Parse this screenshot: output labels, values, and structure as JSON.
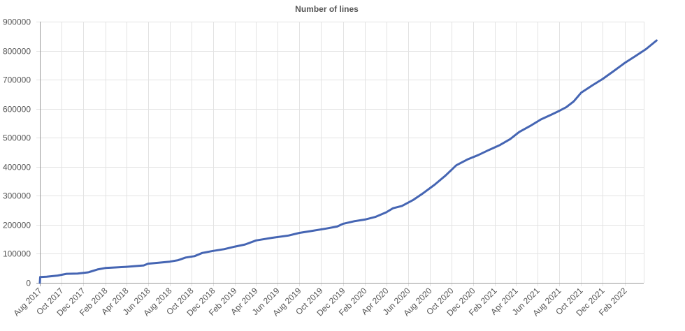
{
  "chart_data": {
    "type": "line",
    "title": "Number of lines",
    "xlabel": "",
    "ylabel": "",
    "ylim": [
      0,
      900000
    ],
    "grid": true,
    "legend": "none",
    "color": "#4565b3",
    "y_ticks": [
      "0",
      "100000",
      "200000",
      "300000",
      "400000",
      "500000",
      "600000",
      "700000",
      "800000",
      "900000"
    ],
    "x_ticks": [
      "Aug 2017",
      "Oct 2017",
      "Dec 2017",
      "Feb 2018",
      "Apr 2018",
      "Jun 2018",
      "Aug 2018",
      "Oct 2018",
      "Dec 2018",
      "Feb 2019",
      "Apr 2019",
      "Jun 2019",
      "Aug 2019",
      "Oct 2019",
      "Dec 2019",
      "Feb 2020",
      "Apr 2020",
      "Jun 2020",
      "Aug 2020",
      "Oct 2020",
      "Dec 2020",
      "Feb 2021",
      "Apr 2021",
      "Jun 2021",
      "Aug 2021",
      "Oct 2021",
      "Dec 2021",
      "Feb 2022"
    ],
    "series": [
      {
        "values": [
          [
            "2017-08-01",
            0
          ],
          [
            "2017-08-02",
            20000
          ],
          [
            "2017-08-20",
            21000
          ],
          [
            "2017-09-20",
            25000
          ],
          [
            "2017-10-15",
            31000
          ],
          [
            "2017-11-15",
            32000
          ],
          [
            "2017-12-15",
            36000
          ],
          [
            "2018-01-10",
            46000
          ],
          [
            "2018-02-01",
            51000
          ],
          [
            "2018-03-01",
            53000
          ],
          [
            "2018-04-01",
            55000
          ],
          [
            "2018-05-01",
            58000
          ],
          [
            "2018-05-20",
            60000
          ],
          [
            "2018-06-01",
            66000
          ],
          [
            "2018-07-01",
            69000
          ],
          [
            "2018-08-01",
            73000
          ],
          [
            "2018-08-25",
            78000
          ],
          [
            "2018-09-15",
            87000
          ],
          [
            "2018-10-10",
            92000
          ],
          [
            "2018-11-01",
            103000
          ],
          [
            "2018-12-01",
            110000
          ],
          [
            "2019-01-01",
            116000
          ],
          [
            "2019-02-01",
            125000
          ],
          [
            "2019-03-01",
            132000
          ],
          [
            "2019-04-01",
            146000
          ],
          [
            "2019-05-15",
            155000
          ],
          [
            "2019-07-01",
            163000
          ],
          [
            "2019-08-01",
            172000
          ],
          [
            "2019-09-01",
            178000
          ],
          [
            "2019-10-15",
            187000
          ],
          [
            "2019-11-15",
            194000
          ],
          [
            "2019-12-01",
            203000
          ],
          [
            "2020-01-01",
            212000
          ],
          [
            "2020-02-01",
            218000
          ],
          [
            "2020-03-01",
            227000
          ],
          [
            "2020-04-01",
            243000
          ],
          [
            "2020-04-20",
            257000
          ],
          [
            "2020-05-15",
            265000
          ],
          [
            "2020-06-15",
            285000
          ],
          [
            "2020-07-15",
            310000
          ],
          [
            "2020-08-15",
            338000
          ],
          [
            "2020-09-15",
            370000
          ],
          [
            "2020-10-15",
            405000
          ],
          [
            "2020-11-15",
            425000
          ],
          [
            "2020-12-15",
            440000
          ],
          [
            "2021-01-15",
            458000
          ],
          [
            "2021-02-15",
            475000
          ],
          [
            "2021-03-15",
            495000
          ],
          [
            "2021-04-10",
            520000
          ],
          [
            "2021-05-10",
            540000
          ],
          [
            "2021-06-10",
            563000
          ],
          [
            "2021-07-10",
            580000
          ],
          [
            "2021-08-01",
            593000
          ],
          [
            "2021-08-20",
            605000
          ],
          [
            "2021-09-10",
            625000
          ],
          [
            "2021-10-01",
            655000
          ],
          [
            "2021-11-01",
            680000
          ],
          [
            "2021-12-01",
            703000
          ],
          [
            "2022-01-01",
            730000
          ],
          [
            "2022-02-01",
            758000
          ],
          [
            "2022-03-01",
            780000
          ],
          [
            "2022-04-01",
            805000
          ],
          [
            "2022-05-01",
            835000
          ]
        ]
      }
    ]
  }
}
